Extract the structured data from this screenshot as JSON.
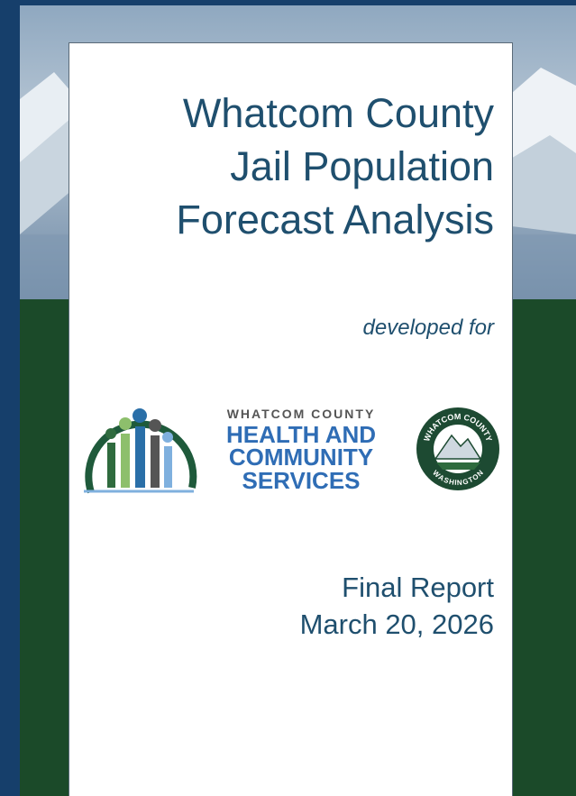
{
  "header": {
    "title_lines": [
      "Whatcom County",
      "Jail Population",
      "Forecast Analysis"
    ],
    "developed_for": "developed for"
  },
  "logos": {
    "department": [
      "WHATCOM COUNTY",
      "HEALTH AND",
      "COMMUNITY",
      "SERVICES"
    ],
    "seal_top": "WHATCOM COUNTY",
    "seal_bottom": "WASHINGTON"
  },
  "report": {
    "label": "Final Report",
    "date": "March 20, 2026"
  }
}
